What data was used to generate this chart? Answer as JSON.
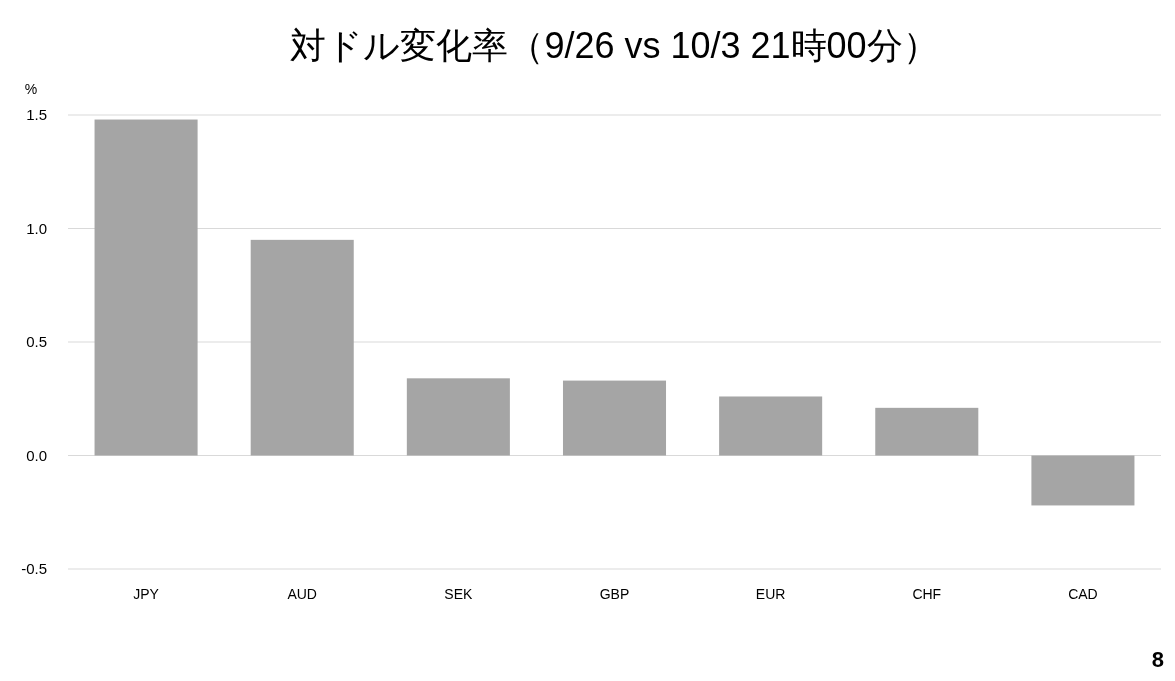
{
  "chart_data": {
    "type": "bar",
    "title": "対ドル変化率（9/26 vs 10/3 21時00分）",
    "ylabel": "%",
    "categories": [
      "JPY",
      "AUD",
      "SEK",
      "GBP",
      "EUR",
      "CHF",
      "CAD"
    ],
    "values": [
      1.48,
      0.95,
      0.34,
      0.33,
      0.26,
      0.21,
      -0.22
    ],
    "color": "#a5a5a5",
    "ylim": [
      -0.5,
      1.5
    ],
    "yticks": [
      1.5,
      {
        "value": 1,
        "label": "1.0"
      },
      0.5,
      {
        "value": 0,
        "label": "0.0"
      },
      -0.5
    ],
    "grid": "y",
    "annotations": [
      "8"
    ]
  }
}
